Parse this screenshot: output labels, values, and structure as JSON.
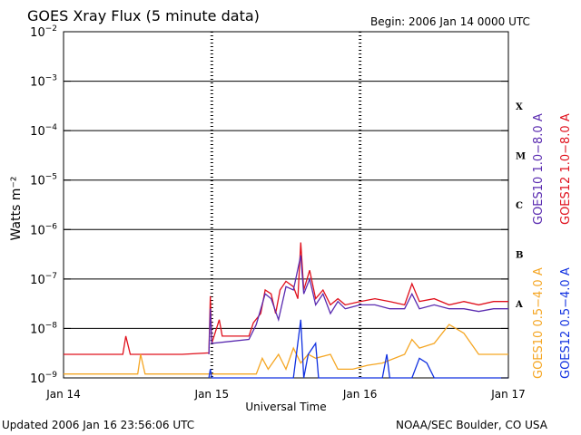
{
  "header": {
    "title": "GOES Xray Flux (5 minute data)",
    "begin": "Begin:  2006 Jan 14 0000 UTC"
  },
  "footer": {
    "updated": "Updated 2006 Jan 16 23:56:06 UTC",
    "credit": "NOAA/SEC Boulder, CO USA"
  },
  "colors": {
    "goes10_long": "#5a2bb0",
    "goes12_long": "#e0101c",
    "goes10_short": "#f5a623",
    "goes12_short": "#1030e0",
    "frame": "#000000"
  },
  "chart_data": {
    "type": "line",
    "title": "GOES Xray Flux (5 minute data)",
    "xlabel": "Universal Time",
    "ylabel": "Watts m⁻²",
    "y_scale": "log",
    "ylim": [
      1e-09,
      0.01
    ],
    "xlim": [
      0,
      3
    ],
    "x_unit": "days since 2006 Jan 14 0000 UTC",
    "x_ticks": [
      {
        "x": 0,
        "label": "Jan 14"
      },
      {
        "x": 1,
        "label": "Jan 15"
      },
      {
        "x": 2,
        "label": "Jan 16"
      },
      {
        "x": 3,
        "label": "Jan 17"
      }
    ],
    "y_ticks": [
      {
        "exp": -2
      },
      {
        "exp": -3
      },
      {
        "exp": -4
      },
      {
        "exp": -5
      },
      {
        "exp": -6
      },
      {
        "exp": -7
      },
      {
        "exp": -8
      },
      {
        "exp": -9
      }
    ],
    "flare_classes": [
      {
        "label": "X",
        "exp": -3.5
      },
      {
        "label": "M",
        "exp": -4.5
      },
      {
        "label": "C",
        "exp": -5.5
      },
      {
        "label": "B",
        "exp": -6.5
      },
      {
        "label": "A",
        "exp": -7.5
      }
    ],
    "legend": [
      {
        "label": "GOES10 1.0−8.0 A",
        "color": "#5a2bb0"
      },
      {
        "label": "GOES12 1.0−8.0 A",
        "color": "#e0101c"
      },
      {
        "label": "GOES10 0.5−4.0 A",
        "color": "#f5a623"
      },
      {
        "label": "GOES12 0.5−4.0 A",
        "color": "#1030e0"
      }
    ],
    "series": [
      {
        "name": "GOES12 1.0−8.0 A",
        "color": "#e0101c",
        "points": [
          [
            0.0,
            3e-09
          ],
          [
            0.4,
            3e-09
          ],
          [
            0.42,
            7e-09
          ],
          [
            0.45,
            3e-09
          ],
          [
            0.8,
            3e-09
          ],
          [
            0.98,
            3.2e-09
          ],
          [
            0.99,
            4.5e-08
          ],
          [
            1.0,
            5e-09
          ],
          [
            1.05,
            1.5e-08
          ],
          [
            1.07,
            7e-09
          ],
          [
            1.25,
            7e-09
          ],
          [
            1.28,
            1.3e-08
          ],
          [
            1.33,
            2e-08
          ],
          [
            1.36,
            6e-08
          ],
          [
            1.4,
            5e-08
          ],
          [
            1.43,
            2e-08
          ],
          [
            1.46,
            6e-08
          ],
          [
            1.5,
            9e-08
          ],
          [
            1.55,
            7e-08
          ],
          [
            1.58,
            4e-08
          ],
          [
            1.6,
            5.5e-07
          ],
          [
            1.62,
            6e-08
          ],
          [
            1.66,
            1.5e-07
          ],
          [
            1.7,
            4e-08
          ],
          [
            1.75,
            6e-08
          ],
          [
            1.8,
            3e-08
          ],
          [
            1.85,
            4e-08
          ],
          [
            1.9,
            3e-08
          ],
          [
            2.0,
            3.5e-08
          ],
          [
            2.1,
            4e-08
          ],
          [
            2.2,
            3.5e-08
          ],
          [
            2.3,
            3e-08
          ],
          [
            2.35,
            8e-08
          ],
          [
            2.4,
            3.5e-08
          ],
          [
            2.5,
            4e-08
          ],
          [
            2.6,
            3e-08
          ],
          [
            2.7,
            3.5e-08
          ],
          [
            2.8,
            3e-08
          ],
          [
            2.9,
            3.5e-08
          ],
          [
            3.0,
            3.5e-08
          ]
        ]
      },
      {
        "name": "GOES10 1.0−8.0 A",
        "color": "#5a2bb0",
        "points": [
          [
            0.98,
            3e-09
          ],
          [
            0.99,
            2.5e-08
          ],
          [
            1.0,
            5e-09
          ],
          [
            1.25,
            6e-09
          ],
          [
            1.3,
            1.2e-08
          ],
          [
            1.36,
            5e-08
          ],
          [
            1.4,
            4e-08
          ],
          [
            1.45,
            1.5e-08
          ],
          [
            1.5,
            7e-08
          ],
          [
            1.55,
            6e-08
          ],
          [
            1.6,
            3e-07
          ],
          [
            1.62,
            5e-08
          ],
          [
            1.66,
            1e-07
          ],
          [
            1.7,
            3e-08
          ],
          [
            1.75,
            5e-08
          ],
          [
            1.8,
            2e-08
          ],
          [
            1.85,
            3.5e-08
          ],
          [
            1.9,
            2.5e-08
          ],
          [
            2.0,
            3e-08
          ],
          [
            2.1,
            3e-08
          ],
          [
            2.2,
            2.5e-08
          ],
          [
            2.3,
            2.5e-08
          ],
          [
            2.35,
            5e-08
          ],
          [
            2.4,
            2.5e-08
          ],
          [
            2.5,
            3e-08
          ],
          [
            2.6,
            2.5e-08
          ],
          [
            2.7,
            2.5e-08
          ],
          [
            2.8,
            2.2e-08
          ],
          [
            2.9,
            2.5e-08
          ],
          [
            3.0,
            2.5e-08
          ]
        ]
      },
      {
        "name": "GOES10 0.5−4.0 A",
        "color": "#f5a623",
        "points": [
          [
            0.0,
            1.2e-09
          ],
          [
            0.5,
            1.2e-09
          ],
          [
            0.52,
            3e-09
          ],
          [
            0.55,
            1.2e-09
          ],
          [
            0.98,
            1.2e-09
          ],
          [
            1.3,
            1.2e-09
          ],
          [
            1.34,
            2.5e-09
          ],
          [
            1.38,
            1.5e-09
          ],
          [
            1.45,
            3e-09
          ],
          [
            1.5,
            1.5e-09
          ],
          [
            1.55,
            4e-09
          ],
          [
            1.6,
            2e-09
          ],
          [
            1.65,
            3e-09
          ],
          [
            1.7,
            2.5e-09
          ],
          [
            1.8,
            3e-09
          ],
          [
            1.85,
            1.5e-09
          ],
          [
            1.95,
            1.5e-09
          ],
          [
            2.05,
            1.8e-09
          ],
          [
            2.15,
            2e-09
          ],
          [
            2.3,
            3e-09
          ],
          [
            2.35,
            6e-09
          ],
          [
            2.4,
            4e-09
          ],
          [
            2.5,
            5e-09
          ],
          [
            2.6,
            1.2e-08
          ],
          [
            2.7,
            8e-09
          ],
          [
            2.8,
            3e-09
          ],
          [
            2.9,
            3e-09
          ],
          [
            3.0,
            3e-09
          ]
        ]
      },
      {
        "name": "GOES12 0.5−4.0 A",
        "color": "#1030e0",
        "points": [
          [
            0.98,
            1e-09
          ],
          [
            0.99,
            1.5e-09
          ],
          [
            1.0,
            1e-09
          ],
          [
            1.55,
            1e-09
          ],
          [
            1.6,
            1.5e-08
          ],
          [
            1.62,
            1e-09
          ],
          [
            1.65,
            3e-09
          ],
          [
            1.7,
            5e-09
          ],
          [
            1.72,
            1e-09
          ],
          [
            2.15,
            1e-09
          ],
          [
            2.18,
            3e-09
          ],
          [
            2.2,
            1e-09
          ],
          [
            2.35,
            1e-09
          ],
          [
            2.4,
            2.5e-09
          ],
          [
            2.45,
            2e-09
          ],
          [
            2.5,
            1e-09
          ],
          [
            3.0,
            1e-09
          ]
        ]
      }
    ]
  }
}
